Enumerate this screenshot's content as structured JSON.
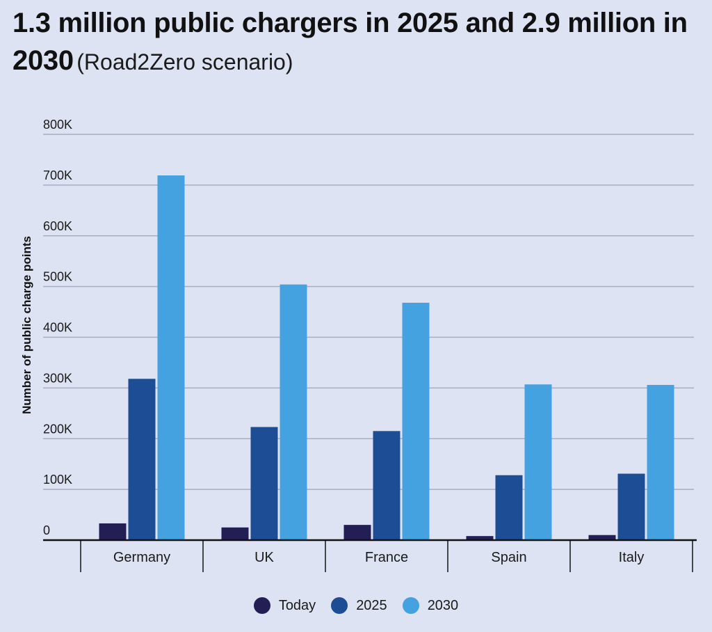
{
  "title": {
    "main": "1.3 million public chargers in 2025 and 2.9 million in 2030",
    "sub": "(Road2Zero scenario)"
  },
  "colors": {
    "Today": "#231f55",
    "2025": "#1c4d95",
    "2030": "#44a2e0",
    "grid": "#a9adc0",
    "axis": "#111111"
  },
  "chart_data": {
    "type": "bar",
    "title": "1.3 million public chargers in 2025 and 2.9 million in 2030 (Road2Zero scenario)",
    "xlabel": "",
    "ylabel": "Number of public charge points",
    "categories": [
      "Germany",
      "UK",
      "France",
      "Spain",
      "Italy"
    ],
    "series": [
      {
        "name": "Today",
        "values": [
          33000,
          25000,
          30000,
          8000,
          10000
        ]
      },
      {
        "name": "2025",
        "values": [
          318000,
          223000,
          215000,
          128000,
          131000
        ]
      },
      {
        "name": "2030",
        "values": [
          719000,
          504000,
          468000,
          307000,
          306000
        ]
      }
    ],
    "ylim": [
      0,
      800000
    ],
    "yticks": [
      0,
      100000,
      200000,
      300000,
      400000,
      500000,
      600000,
      700000,
      800000
    ],
    "ytick_labels": [
      "0",
      "100K",
      "200K",
      "300K",
      "400K",
      "500K",
      "600K",
      "700K",
      "800K"
    ],
    "grid": true,
    "legend": "bottom-center"
  }
}
